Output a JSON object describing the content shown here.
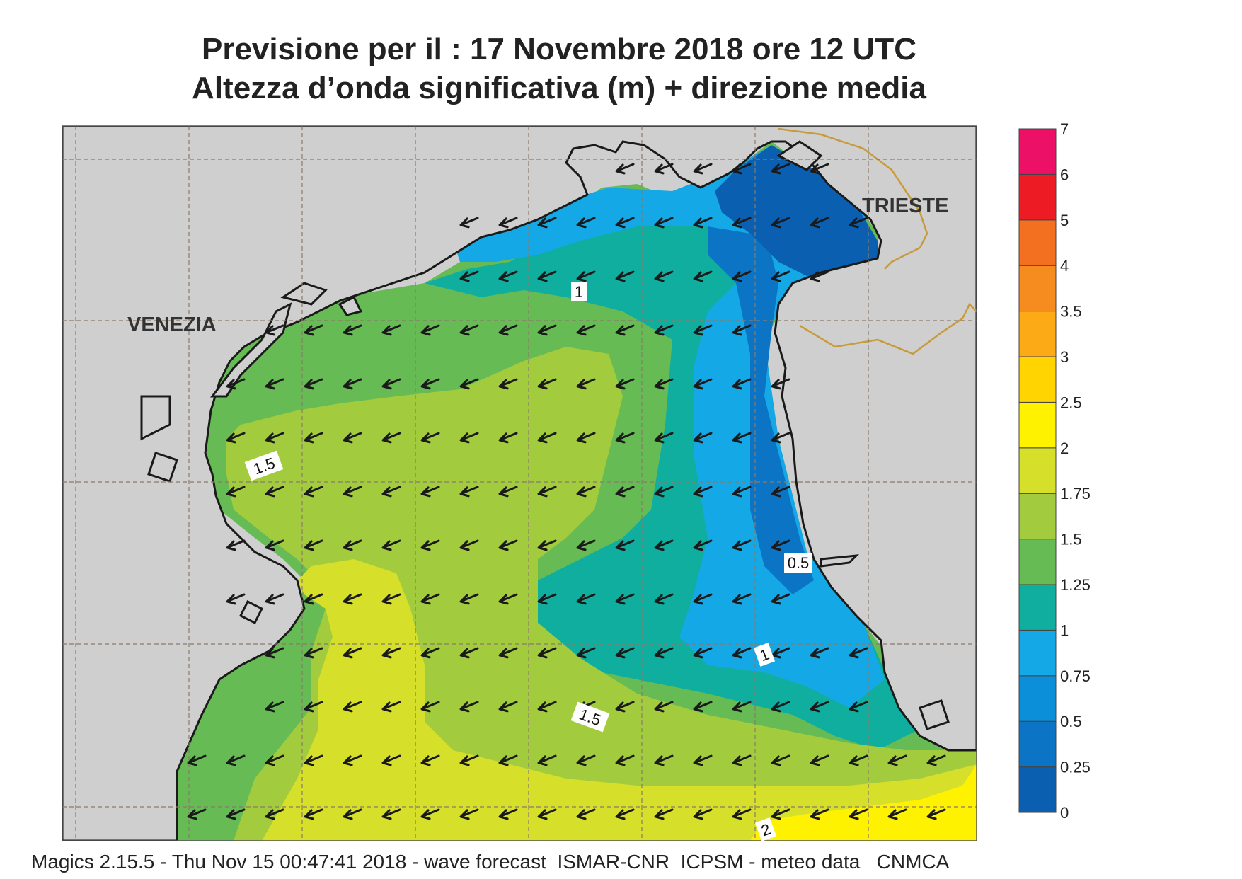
{
  "title_line1": "Previsione per il  :  17 Novembre  2018   ore 12 UTC",
  "title_line2": "Altezza d’onda significativa (m) + direzione media",
  "footer": "Magics 2.15.5 - Thu Nov 15 00:47:41 2018 - wave forecast  ISMAR-CNR  ICPSM - meteo data   CNMCA",
  "cities": [
    {
      "name": "VENEZIA"
    },
    {
      "name": "TRIESTE"
    }
  ],
  "contour_labels": [
    "1",
    "1.5",
    "0.5",
    "1",
    "1.5",
    "2"
  ],
  "legend": {
    "levels": [
      "0",
      "0.25",
      "0.5",
      "0.75",
      "1",
      "1.25",
      "1.5",
      "1.75",
      "2",
      "2.5",
      "3",
      "3.5",
      "4",
      "5",
      "6",
      "7"
    ],
    "colors": [
      "#0a5fb0",
      "#0c74c4",
      "#0a8fd8",
      "#14a8e6",
      "#0fae9f",
      "#66bb55",
      "#a2cc3e",
      "#d6df2a",
      "#fff200",
      "#ffd400",
      "#fcab17",
      "#f68b1f",
      "#f37021",
      "#ed1c24",
      "#ec1067"
    ]
  },
  "colors": {
    "land": "#cfcfcf",
    "coast": "#1a1a1a",
    "border": "#c79a3c",
    "arrow": "#1a1a1a"
  },
  "arrow_direction": "southwest"
}
